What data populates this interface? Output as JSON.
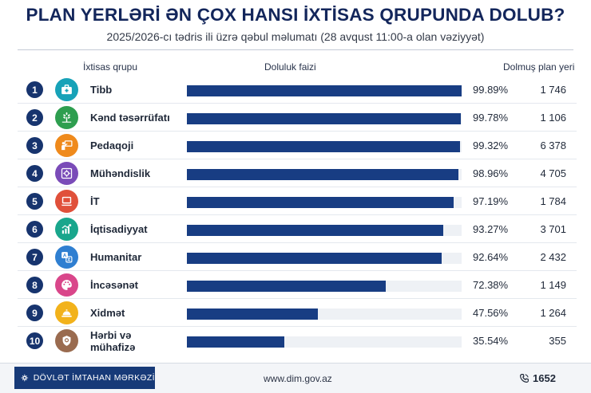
{
  "header": {
    "title": "PLAN YERLƏRİ ƏN ÇOX HANSI İXTİSAS QRUPUNDA DOLUB?",
    "subtitle": "2025/2026-cı tədris ili üzrə qəbul məlumatı (28 avqust 11:00-a olan vəziyyət)"
  },
  "columns": {
    "group": "İxtisas qrupu",
    "fill": "Doluluk faizi",
    "seats": "Dolmuş plan yeri"
  },
  "rows": [
    {
      "rank": "1",
      "name": "Tibb",
      "percent_label": "99.89%",
      "seats_label": "1 746",
      "icon": "medical-kit-icon",
      "color": "#17a2b8"
    },
    {
      "rank": "2",
      "name": "Kənd təsərrüfatı",
      "percent_label": "99.78%",
      "seats_label": "1 106",
      "icon": "wheat-icon",
      "color": "#2e9e4f"
    },
    {
      "rank": "3",
      "name": "Pedaqoji",
      "percent_label": "99.32%",
      "seats_label": "6 378",
      "icon": "teacher-board-icon",
      "color": "#ef8a1c"
    },
    {
      "rank": "4",
      "name": "Mühəndislik",
      "percent_label": "98.96%",
      "seats_label": "4 705",
      "icon": "blueprint-icon",
      "color": "#7a4bb8"
    },
    {
      "rank": "5",
      "name": "İT",
      "percent_label": "97.19%",
      "seats_label": "1 784",
      "icon": "laptop-icon",
      "color": "#e0503a"
    },
    {
      "rank": "6",
      "name": "İqtisadiyyat",
      "percent_label": "93.27%",
      "seats_label": "3 701",
      "icon": "growth-chart-icon",
      "color": "#19a68c"
    },
    {
      "rank": "7",
      "name": "Humanitar",
      "percent_label": "92.64%",
      "seats_label": "2 432",
      "icon": "translate-icon",
      "color": "#2f7fd1"
    },
    {
      "rank": "8",
      "name": "İncəsənət",
      "percent_label": "72.38%",
      "seats_label": "1 149",
      "icon": "palette-icon",
      "color": "#d9468a"
    },
    {
      "rank": "9",
      "name": "Xidmət",
      "percent_label": "47.56%",
      "seats_label": "1 264",
      "icon": "service-bell-icon",
      "color": "#f2b21b"
    },
    {
      "rank": "10",
      "name": "Hərbi və mühafizə",
      "percent_label": "35.54%",
      "seats_label": "355",
      "icon": "shield-icon",
      "color": "#9a6b4f"
    }
  ],
  "chart_data": {
    "type": "bar",
    "orientation": "horizontal",
    "title": "PLAN YERLƏRİ ƏN ÇOX HANSI İXTİSAS QRUPUNDA DOLUB?",
    "subtitle": "2025/2026-cı tədris ili üzrə qəbul məlumatı (28 avqust 11:00-a olan vəziyyət)",
    "categories": [
      "Tibb",
      "Kənd təsərrüfatı",
      "Pedaqoji",
      "Mühəndislik",
      "İT",
      "İqtisadiyyat",
      "Humanitar",
      "İncəsənət",
      "Xidmət",
      "Hərbi və mühafizə"
    ],
    "series": [
      {
        "name": "Doluluk faizi",
        "values": [
          99.89,
          99.78,
          99.32,
          98.96,
          97.19,
          93.27,
          92.64,
          72.38,
          47.56,
          35.54
        ]
      },
      {
        "name": "Dolmuş plan yeri",
        "values": [
          1746,
          1106,
          6378,
          4705,
          1784,
          3701,
          2432,
          1149,
          1264,
          355
        ]
      }
    ],
    "xlim": [
      0,
      100
    ],
    "grid": false,
    "bar_color": "#183d83"
  },
  "footer": {
    "brand": "DÖVLƏT İMTAHAN MƏRKƏZİ",
    "website": "www.dim.gov.az",
    "phone": "1652"
  }
}
